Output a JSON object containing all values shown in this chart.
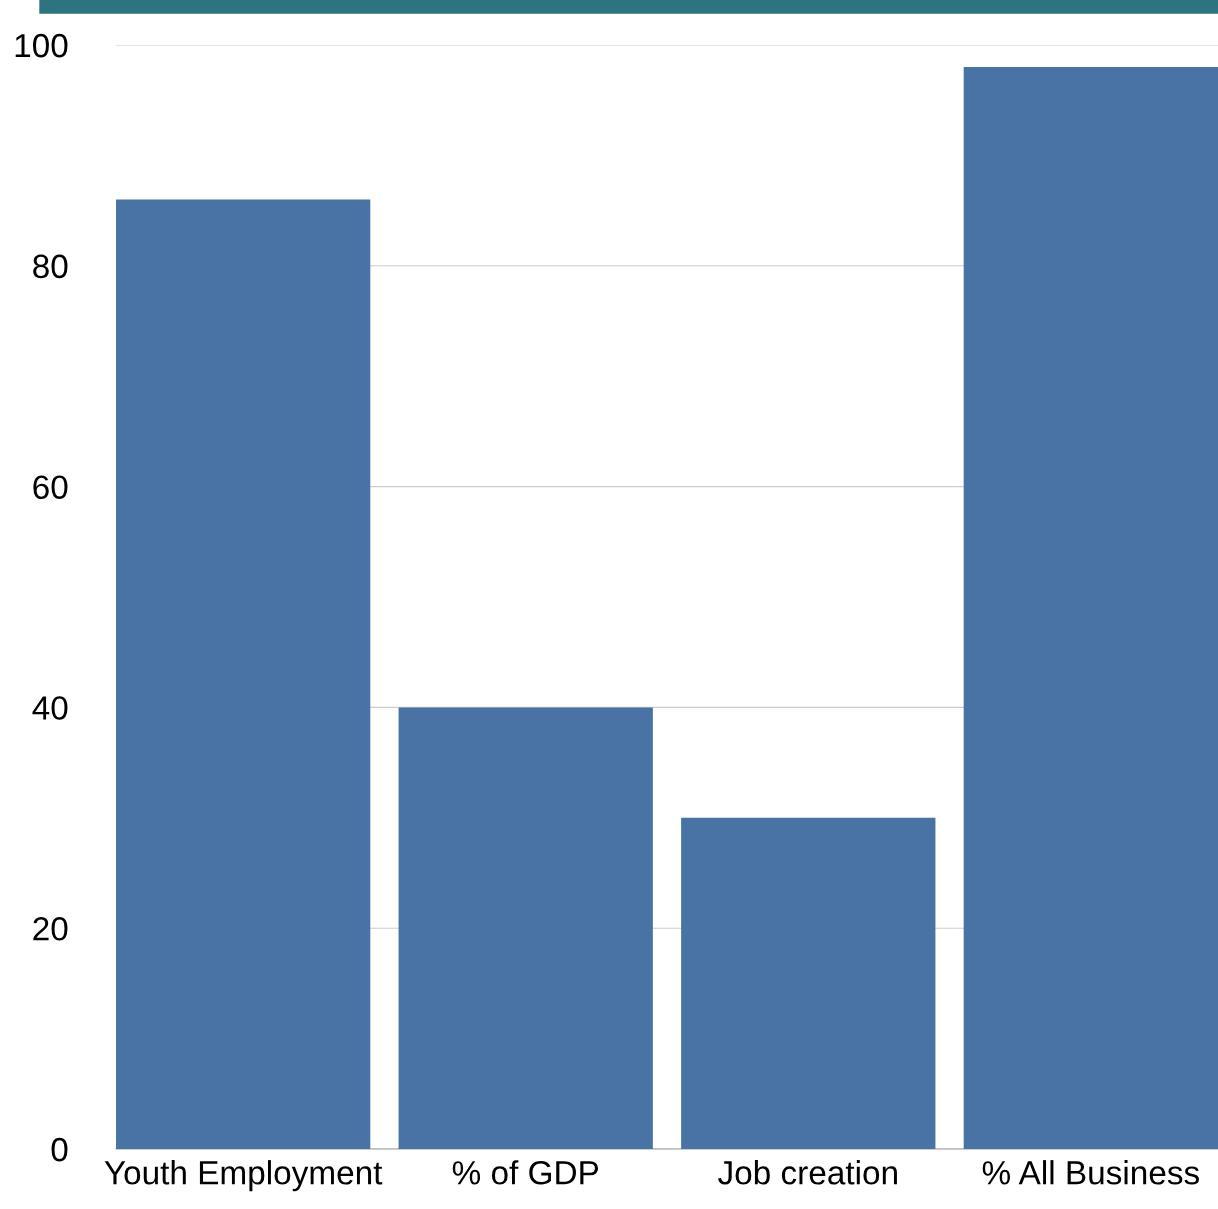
{
  "chart_data": {
    "type": "bar",
    "categories": [
      "Youth Employment",
      "% of GDP",
      "Job creation",
      "% All Business"
    ],
    "values": [
      86,
      40,
      30,
      98
    ],
    "color": "#4a73a5",
    "ylim": [
      0,
      100
    ],
    "yticks": [
      0,
      20,
      40,
      60,
      80,
      100
    ],
    "grid": "y"
  }
}
